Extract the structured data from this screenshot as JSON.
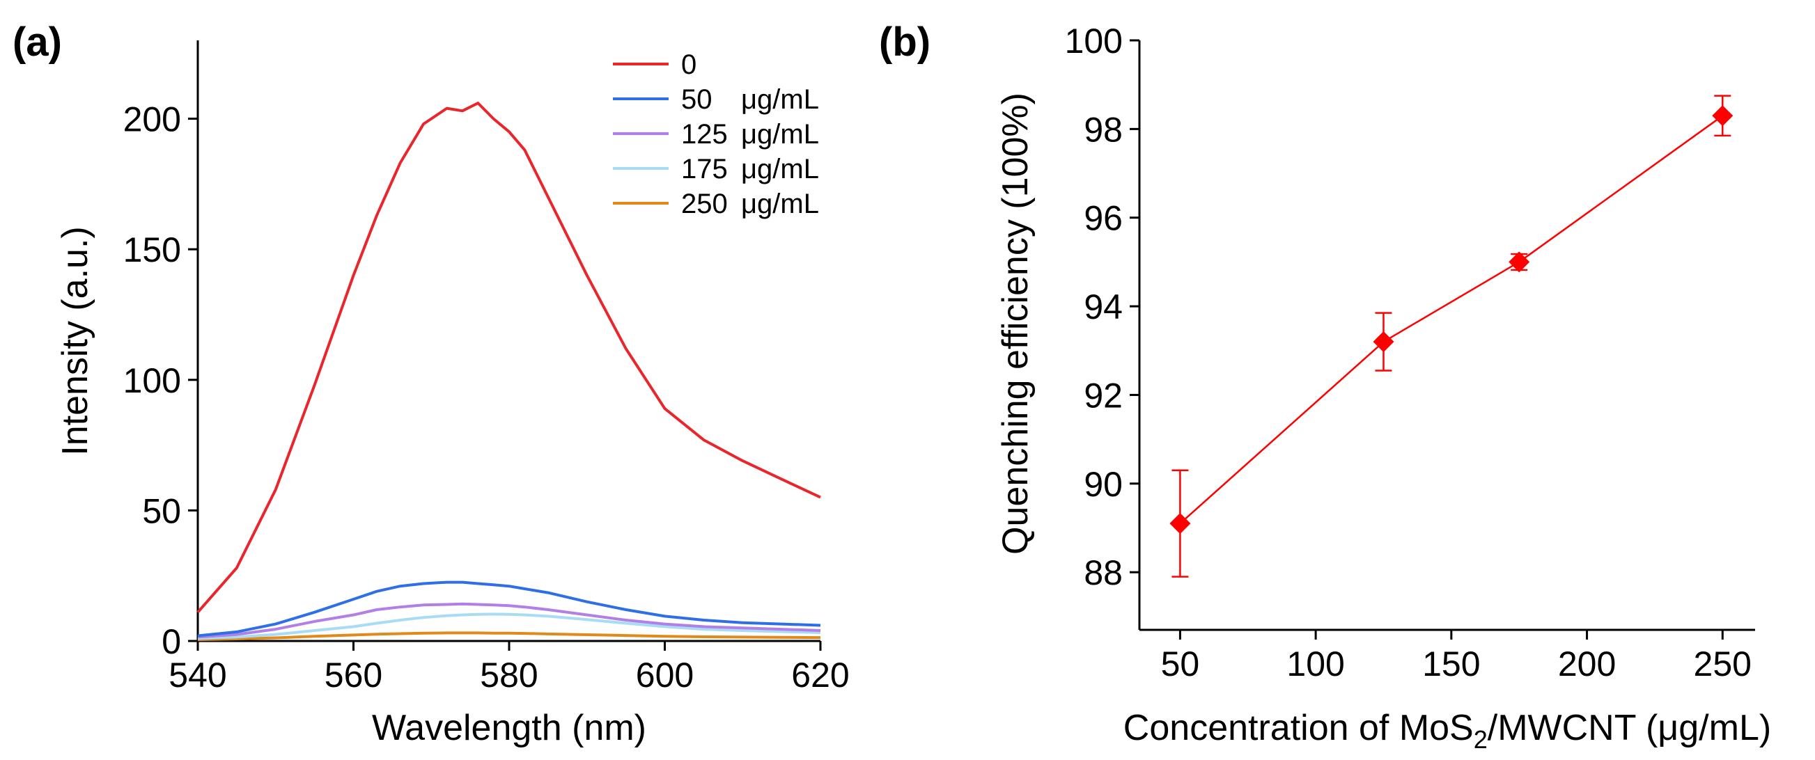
{
  "chart_data": [
    {
      "type": "line",
      "panel_label": "(a)",
      "xlabel": "Wavelength (nm)",
      "ylabel": "Intensity (a.u.)",
      "xlim": [
        540,
        620
      ],
      "ylim": [
        0,
        230
      ],
      "xticks": [
        540,
        560,
        580,
        600,
        620
      ],
      "yticks": [
        0,
        50,
        100,
        150,
        200
      ],
      "legend_position": "top-right",
      "x": [
        540,
        545,
        550,
        555,
        560,
        563,
        566,
        569,
        572,
        574,
        576,
        578,
        580,
        582,
        585,
        590,
        595,
        600,
        605,
        610,
        615,
        620
      ],
      "series": [
        {
          "name": "0",
          "unit": "",
          "color": "#e8262c",
          "values": [
            11,
            28,
            58,
            98,
            140,
            163,
            183,
            198,
            204,
            203,
            206,
            200,
            195,
            188,
            170,
            140,
            112,
            89,
            77,
            69,
            62,
            55
          ]
        },
        {
          "name": "50",
          "unit": "μg/mL",
          "color": "#2e6fe8",
          "values": [
            2,
            3.5,
            6.5,
            11,
            16,
            19,
            21,
            22,
            22.5,
            22.5,
            22,
            21.5,
            21,
            20,
            18.5,
            15,
            12,
            9.5,
            8,
            7,
            6.5,
            6
          ]
        },
        {
          "name": "125",
          "unit": "μg/mL",
          "color": "#b27fe6",
          "values": [
            1.5,
            2.5,
            4.5,
            7.5,
            10,
            12,
            13,
            13.8,
            14,
            14.2,
            14,
            13.8,
            13.5,
            13,
            12,
            10,
            8,
            6.5,
            5.5,
            5,
            4.5,
            4
          ]
        },
        {
          "name": "175",
          "unit": "μg/mL",
          "color": "#a8dcf5",
          "values": [
            1,
            1.5,
            2.5,
            4,
            5.5,
            6.8,
            8,
            9,
            9.7,
            10,
            10.2,
            10.3,
            10.2,
            10,
            9.5,
            8.2,
            6.8,
            5.5,
            4.5,
            4,
            3.6,
            3.2
          ]
        },
        {
          "name": "250",
          "unit": "μg/mL",
          "color": "#e08a1c",
          "values": [
            0.5,
            0.8,
            1.2,
            1.8,
            2.3,
            2.6,
            2.8,
            3,
            3.1,
            3.1,
            3.1,
            3,
            3,
            2.9,
            2.7,
            2.4,
            2.1,
            1.8,
            1.6,
            1.5,
            1.4,
            1.3
          ]
        }
      ]
    },
    {
      "type": "line",
      "panel_label": "(b)",
      "xlabel_prefix": "Concentration of MoS",
      "xlabel_sub": "2",
      "xlabel_suffix": "/MWCNT (μg/mL)",
      "ylabel": "Quenching efficiency (100%)",
      "xlim": [
        35,
        262
      ],
      "ylim": [
        86.7,
        100
      ],
      "xticks": [
        50,
        100,
        150,
        200,
        250
      ],
      "yticks": [
        88,
        90,
        92,
        94,
        96,
        98,
        100
      ],
      "color": "#ff0000",
      "x": [
        50,
        125,
        175,
        250
      ],
      "values": [
        89.1,
        93.2,
        95.0,
        98.3
      ],
      "error": [
        1.2,
        0.65,
        0.18,
        0.45
      ]
    }
  ]
}
